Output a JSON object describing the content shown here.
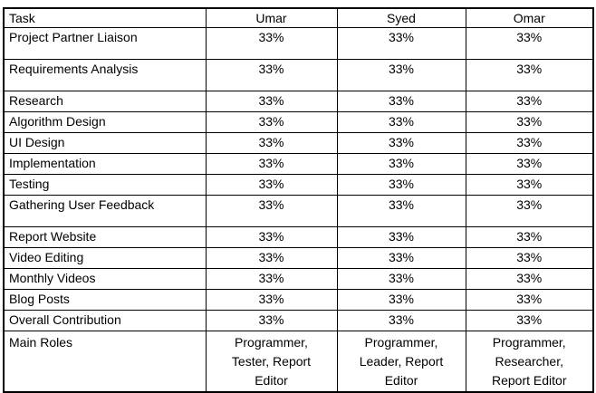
{
  "colors": {
    "background": "#ffffff",
    "border": "#000000",
    "text": "#000000"
  },
  "table": {
    "columns": [
      "Task",
      "Umar",
      "Syed",
      "Omar"
    ],
    "rows": [
      {
        "task": "Project Partner Liaison",
        "values": [
          "33%",
          "33%",
          "33%"
        ],
        "row_type": "tall"
      },
      {
        "task": "Requirements Analysis",
        "values": [
          "33%",
          "33%",
          "33%"
        ],
        "row_type": "tall"
      },
      {
        "task": "Research",
        "values": [
          "33%",
          "33%",
          "33%"
        ],
        "row_type": "normal"
      },
      {
        "task": "Algorithm Design",
        "values": [
          "33%",
          "33%",
          "33%"
        ],
        "row_type": "normal"
      },
      {
        "task": "UI Design",
        "values": [
          "33%",
          "33%",
          "33%"
        ],
        "row_type": "normal"
      },
      {
        "task": "Implementation",
        "values": [
          "33%",
          "33%",
          "33%"
        ],
        "row_type": "normal"
      },
      {
        "task": "Testing",
        "values": [
          "33%",
          "33%",
          "33%"
        ],
        "row_type": "normal"
      },
      {
        "task": "Gathering User Feedback",
        "values": [
          "33%",
          "33%",
          "33%"
        ],
        "row_type": "tall"
      },
      {
        "task": "Report Website",
        "values": [
          "33%",
          "33%",
          "33%"
        ],
        "row_type": "normal"
      },
      {
        "task": "Video Editing",
        "values": [
          "33%",
          "33%",
          "33%"
        ],
        "row_type": "normal"
      },
      {
        "task": "Monthly Videos",
        "values": [
          "33%",
          "33%",
          "33%"
        ],
        "row_type": "normal"
      },
      {
        "task": "Blog Posts",
        "values": [
          "33%",
          "33%",
          "33%"
        ],
        "row_type": "normal"
      },
      {
        "task": "Overall Contribution",
        "values": [
          "33%",
          "33%",
          "33%"
        ],
        "row_type": "normal"
      },
      {
        "task": "Main Roles",
        "values": [
          "Programmer,\nTester, Report\nEditor",
          "Programmer,\nLeader, Report\nEditor",
          "Programmer,\nResearcher,\nReport Editor"
        ],
        "row_type": "roles"
      }
    ]
  }
}
